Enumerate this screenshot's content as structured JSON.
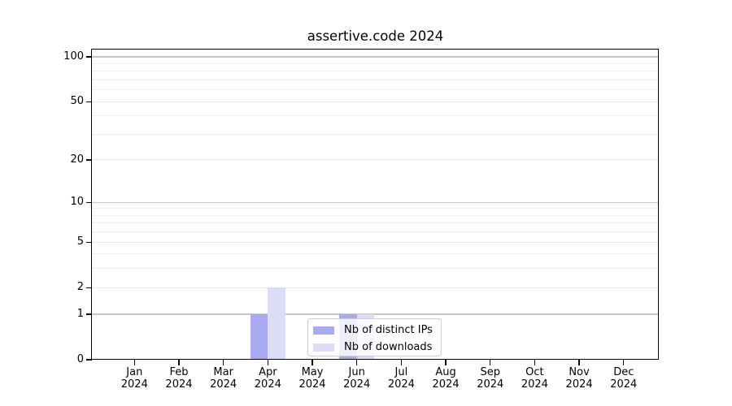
{
  "chart_data": {
    "type": "bar",
    "title": "assertive.code 2024",
    "categories": [
      "Jan",
      "Feb",
      "Mar",
      "Apr",
      "May",
      "Jun",
      "Jul",
      "Aug",
      "Sep",
      "Oct",
      "Nov",
      "Dec"
    ],
    "x_year_label": "2024",
    "series": [
      {
        "name": "Nb of distinct IPs",
        "color": "#a9aaf2",
        "values": [
          0,
          0,
          0,
          1,
          0,
          1,
          0,
          0,
          0,
          0,
          0,
          0
        ]
      },
      {
        "name": "Nb of downloads",
        "color": "#dcdcf9",
        "values": [
          0,
          0,
          0,
          2,
          0,
          1,
          0,
          0,
          0,
          0,
          0,
          0
        ]
      }
    ],
    "yscale": "log1p",
    "ylim": [
      0,
      109
    ],
    "y_major_ticks": [
      0,
      1,
      2,
      5,
      10,
      20,
      50,
      100
    ],
    "y_decade_ticks": [
      1,
      10,
      100
    ],
    "y_minor_gridlines": [
      3,
      4,
      6,
      7,
      8,
      9,
      30,
      40,
      60,
      70,
      80,
      90
    ],
    "grid": "horizontal",
    "legend_position": "lower center"
  },
  "colors": {
    "grid_major": "#c6c6c6",
    "grid_mid": "#e3e3e3",
    "grid_minor": "#eeeeee",
    "spine": "#000000",
    "legend_border": "#cccccc"
  }
}
